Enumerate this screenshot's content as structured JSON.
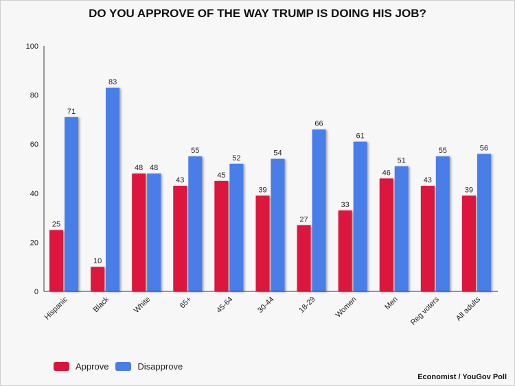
{
  "chart_data": {
    "type": "bar",
    "title": "DO YOU APPROVE OF THE WAY TRUMP IS DOING HIS JOB?",
    "categories": [
      "Hispanic",
      "Black",
      "White",
      "65+",
      "45-64",
      "30-44",
      "18-29",
      "Women",
      "Men",
      "Reg voters",
      "All adults"
    ],
    "series": [
      {
        "name": "Approve",
        "color": "#dc143c",
        "values": [
          25,
          10,
          48,
          43,
          45,
          39,
          27,
          33,
          46,
          43,
          39
        ]
      },
      {
        "name": "Disapprove",
        "color": "#4a7de8",
        "values": [
          71,
          83,
          48,
          55,
          52,
          54,
          66,
          61,
          51,
          55,
          56
        ]
      }
    ],
    "ylim": [
      0,
      100
    ],
    "yticks": [
      0,
      20,
      40,
      60,
      80,
      100
    ],
    "grid": false,
    "legend_position": "bottom-left",
    "xlabel": "",
    "ylabel": ""
  },
  "source": "Economist / YouGov Poll"
}
